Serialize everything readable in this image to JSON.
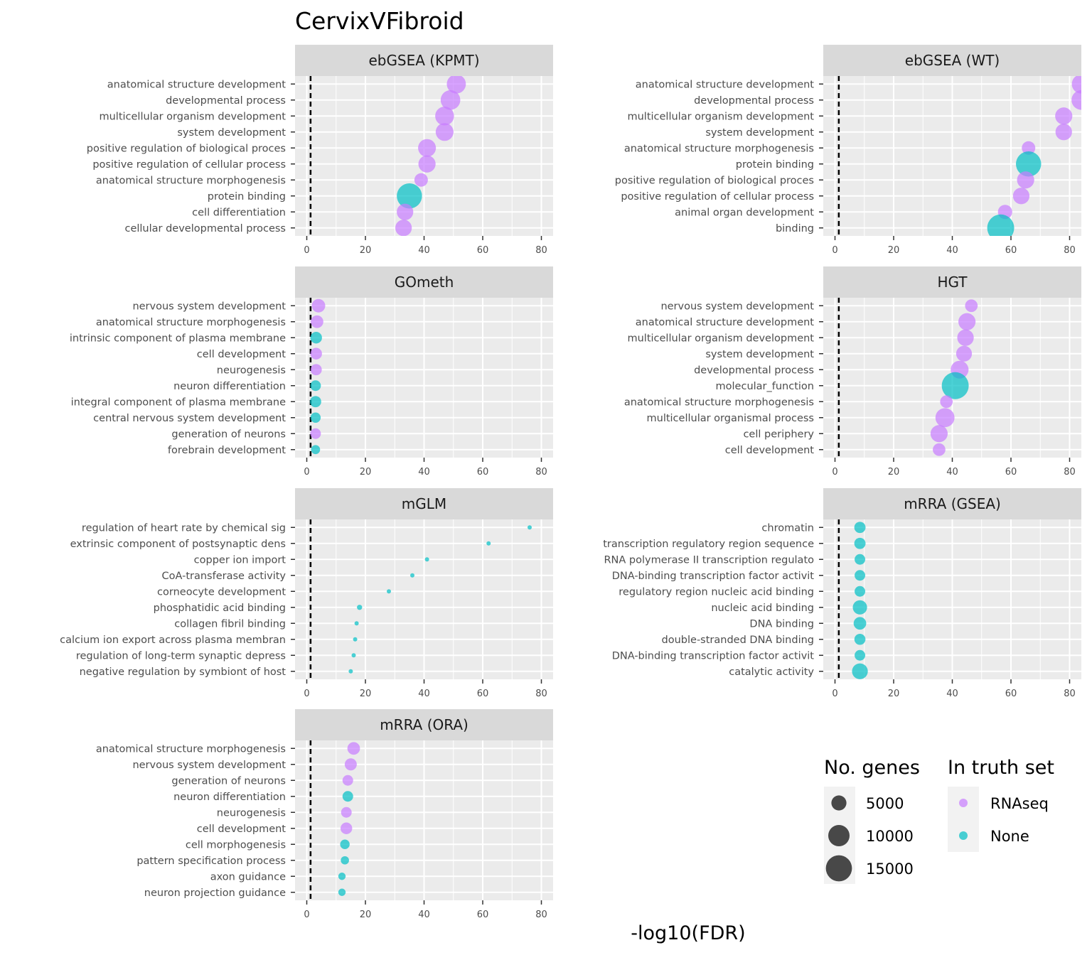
{
  "chart_data": {
    "type": "scatter",
    "title": "CervixVFibroid",
    "xlabel": "-log10(FDR)",
    "xlim": [
      -4,
      84
    ],
    "x_ticks": [
      0,
      20,
      40,
      60,
      80
    ],
    "reference_line_x": 1.3,
    "grid": true,
    "colors": {
      "RNAseq": "#C77CFF",
      "None": "#00BFC4"
    },
    "legend": {
      "position": "bottom-right",
      "size_title": "No. genes",
      "size_breaks": [
        5000,
        10000,
        15000
      ],
      "size_break_labels": [
        "5000",
        "10000",
        "15000"
      ],
      "color_title": "In truth set",
      "color_entries": [
        "RNAseq",
        "None"
      ]
    },
    "panels": [
      {
        "name": "ebGSEA (KPMT)",
        "points": [
          {
            "term": "anatomical structure development",
            "x": 51,
            "genes": 8000,
            "truth": "RNAseq"
          },
          {
            "term": "developmental process",
            "x": 49,
            "genes": 8500,
            "truth": "RNAseq"
          },
          {
            "term": "multicellular organism development",
            "x": 47,
            "genes": 7800,
            "truth": "RNAseq"
          },
          {
            "term": "system development",
            "x": 47,
            "genes": 7000,
            "truth": "RNAseq"
          },
          {
            "term": "positive regulation of biological proces",
            "x": 41,
            "genes": 7000,
            "truth": "RNAseq"
          },
          {
            "term": "positive regulation of cellular process",
            "x": 41,
            "genes": 6500,
            "truth": "RNAseq"
          },
          {
            "term": "anatomical structure morphogenesis",
            "x": 39,
            "genes": 4000,
            "truth": "RNAseq"
          },
          {
            "term": "protein binding",
            "x": 35,
            "genes": 14000,
            "truth": "None"
          },
          {
            "term": "cell differentiation",
            "x": 33.5,
            "genes": 6000,
            "truth": "RNAseq"
          },
          {
            "term": "cellular developmental process",
            "x": 33,
            "genes": 6000,
            "truth": "RNAseq"
          }
        ]
      },
      {
        "name": "ebGSEA (WT)",
        "points": [
          {
            "term": "anatomical structure development",
            "x": 84,
            "genes": 8000,
            "truth": "RNAseq"
          },
          {
            "term": "developmental process",
            "x": 84,
            "genes": 8500,
            "truth": "RNAseq"
          },
          {
            "term": "multicellular organism development",
            "x": 78,
            "genes": 6500,
            "truth": "RNAseq"
          },
          {
            "term": "system development",
            "x": 78,
            "genes": 6000,
            "truth": "RNAseq"
          },
          {
            "term": "anatomical structure morphogenesis",
            "x": 66,
            "genes": 4000,
            "truth": "RNAseq"
          },
          {
            "term": "protein binding",
            "x": 66,
            "genes": 14000,
            "truth": "None"
          },
          {
            "term": "positive regulation of biological proces",
            "x": 65,
            "genes": 6500,
            "truth": "RNAseq"
          },
          {
            "term": "positive regulation of cellular process",
            "x": 63.5,
            "genes": 6000,
            "truth": "RNAseq"
          },
          {
            "term": "animal organ development",
            "x": 58,
            "genes": 4500,
            "truth": "RNAseq"
          },
          {
            "term": "binding",
            "x": 56.5,
            "genes": 16000,
            "truth": "None"
          }
        ]
      },
      {
        "name": "GOmeth",
        "points": [
          {
            "term": "nervous system development",
            "x": 4,
            "genes": 4000,
            "truth": "RNAseq"
          },
          {
            "term": "anatomical structure morphogenesis",
            "x": 3.5,
            "genes": 3500,
            "truth": "RNAseq"
          },
          {
            "term": "intrinsic component of plasma membrane",
            "x": 3.2,
            "genes": 3000,
            "truth": "None"
          },
          {
            "term": "cell development",
            "x": 3.2,
            "genes": 3000,
            "truth": "RNAseq"
          },
          {
            "term": "neurogenesis",
            "x": 3.2,
            "genes": 2800,
            "truth": "RNAseq"
          },
          {
            "term": "neuron differentiation",
            "x": 3,
            "genes": 2500,
            "truth": "None"
          },
          {
            "term": "integral component of plasma membrane",
            "x": 3,
            "genes": 2800,
            "truth": "None"
          },
          {
            "term": "central nervous system development",
            "x": 3,
            "genes": 2300,
            "truth": "None"
          },
          {
            "term": "generation of neurons",
            "x": 3,
            "genes": 2500,
            "truth": "RNAseq"
          },
          {
            "term": "forebrain development",
            "x": 3,
            "genes": 1800,
            "truth": "None"
          }
        ]
      },
      {
        "name": "HGT",
        "points": [
          {
            "term": "nervous system development",
            "x": 46.5,
            "genes": 3500,
            "truth": "RNAseq"
          },
          {
            "term": "anatomical structure development",
            "x": 45,
            "genes": 6500,
            "truth": "RNAseq"
          },
          {
            "term": "multicellular organism development",
            "x": 44.5,
            "genes": 6000,
            "truth": "RNAseq"
          },
          {
            "term": "system development",
            "x": 44,
            "genes": 5500,
            "truth": "RNAseq"
          },
          {
            "term": "developmental process",
            "x": 42.5,
            "genes": 7000,
            "truth": "RNAseq"
          },
          {
            "term": "molecular_function",
            "x": 41,
            "genes": 16000,
            "truth": "None"
          },
          {
            "term": "anatomical structure morphogenesis",
            "x": 38,
            "genes": 3500,
            "truth": "RNAseq"
          },
          {
            "term": "multicellular organismal process",
            "x": 37.5,
            "genes": 8000,
            "truth": "RNAseq"
          },
          {
            "term": "cell periphery",
            "x": 35.5,
            "genes": 6500,
            "truth": "RNAseq"
          },
          {
            "term": "cell development",
            "x": 35.5,
            "genes": 3500,
            "truth": "RNAseq"
          }
        ]
      },
      {
        "name": "mGLM",
        "points": [
          {
            "term": "regulation of heart rate by chemical sig",
            "x": 76,
            "genes": 400,
            "truth": "None"
          },
          {
            "term": "extrinsic component of postsynaptic dens",
            "x": 62,
            "genes": 400,
            "truth": "None"
          },
          {
            "term": "copper ion import",
            "x": 41,
            "genes": 400,
            "truth": "None"
          },
          {
            "term": "CoA-transferase activity",
            "x": 36,
            "genes": 400,
            "truth": "None"
          },
          {
            "term": "corneocyte development",
            "x": 28,
            "genes": 400,
            "truth": "None"
          },
          {
            "term": "phosphatidic acid binding",
            "x": 18,
            "genes": 600,
            "truth": "None"
          },
          {
            "term": "collagen fibril binding",
            "x": 17,
            "genes": 400,
            "truth": "None"
          },
          {
            "term": "calcium ion export across plasma membran",
            "x": 16.5,
            "genes": 400,
            "truth": "None"
          },
          {
            "term": "regulation of long-term synaptic depress",
            "x": 16,
            "genes": 400,
            "truth": "None"
          },
          {
            "term": "negative regulation by symbiont of host ",
            "x": 15,
            "genes": 400,
            "truth": "None"
          }
        ]
      },
      {
        "name": "mRRA (GSEA)",
        "points": [
          {
            "term": "chromatin",
            "x": 8.5,
            "genes": 2800,
            "truth": "None"
          },
          {
            "term": "transcription regulatory region sequence",
            "x": 8.5,
            "genes": 2800,
            "truth": "None"
          },
          {
            "term": "RNA polymerase II transcription regulato",
            "x": 8.5,
            "genes": 2500,
            "truth": "None"
          },
          {
            "term": "DNA-binding transcription factor activit",
            "x": 8.5,
            "genes": 2500,
            "truth": "None"
          },
          {
            "term": "regulatory region nucleic acid binding",
            "x": 8.5,
            "genes": 2500,
            "truth": "None"
          },
          {
            "term": "nucleic acid binding",
            "x": 8.5,
            "genes": 4500,
            "truth": "None"
          },
          {
            "term": "DNA binding",
            "x": 8.5,
            "genes": 3500,
            "truth": "None"
          },
          {
            "term": "double-stranded DNA binding",
            "x": 8.5,
            "genes": 2700,
            "truth": "None"
          },
          {
            "term": "DNA-binding transcription factor activit",
            "x": 8.5,
            "genes": 2500,
            "truth": "None"
          },
          {
            "term": "catalytic activity",
            "x": 8.5,
            "genes": 5500,
            "truth": "None"
          }
        ]
      },
      {
        "name": "mRRA (ORA)",
        "points": [
          {
            "term": "anatomical structure morphogenesis",
            "x": 16,
            "genes": 3500,
            "truth": "RNAseq"
          },
          {
            "term": "nervous system development",
            "x": 15,
            "genes": 3200,
            "truth": "RNAseq"
          },
          {
            "term": "generation of neurons",
            "x": 14,
            "genes": 2500,
            "truth": "RNAseq"
          },
          {
            "term": "neuron differentiation",
            "x": 14,
            "genes": 2500,
            "truth": "None"
          },
          {
            "term": "neurogenesis",
            "x": 13.5,
            "genes": 2500,
            "truth": "RNAseq"
          },
          {
            "term": "cell development",
            "x": 13.5,
            "genes": 3000,
            "truth": "RNAseq"
          },
          {
            "term": "cell morphogenesis",
            "x": 13,
            "genes": 2000,
            "truth": "None"
          },
          {
            "term": "pattern specification process",
            "x": 13,
            "genes": 1500,
            "truth": "None"
          },
          {
            "term": "axon guidance",
            "x": 12,
            "genes": 1200,
            "truth": "None"
          },
          {
            "term": "neuron projection guidance",
            "x": 12,
            "genes": 1200,
            "truth": "None"
          }
        ]
      }
    ]
  }
}
